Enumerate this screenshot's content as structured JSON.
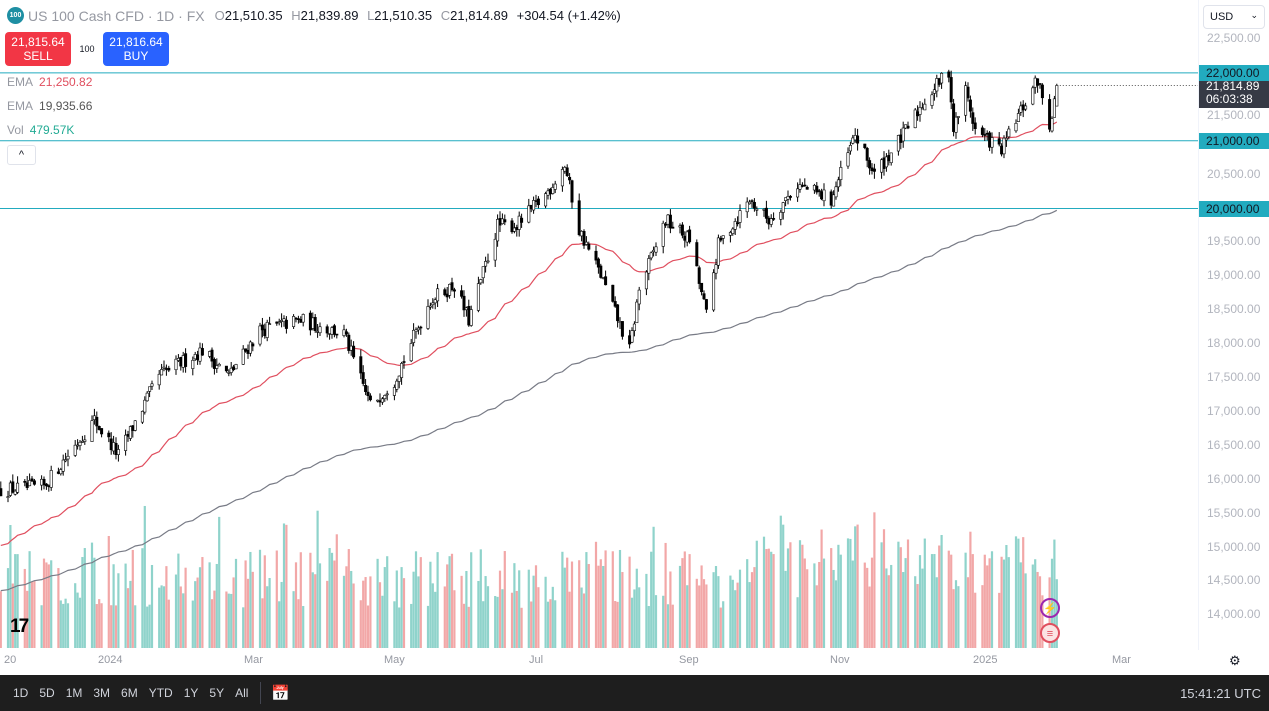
{
  "header": {
    "logo_text": "100",
    "symbol": "US 100 Cash CFD · 1D · FX",
    "open_label": "O",
    "open": "21,510.35",
    "high_label": "H",
    "high": "21,839.89",
    "low_label": "L",
    "low": "21,510.35",
    "close_label": "C",
    "close": "21,814.89",
    "change": "+304.54 (+1.42%)"
  },
  "trade": {
    "sell_price": "21,815.64",
    "sell_label": "SELL",
    "spread": "100",
    "buy_price": "21,816.64",
    "buy_label": "BUY"
  },
  "indicators": [
    {
      "label": "EMA",
      "value": "21,250.82",
      "color": "#e04f5f"
    },
    {
      "label": "EMA",
      "value": "19,935.66",
      "color": "#787b86"
    },
    {
      "label": "Vol",
      "value": "479.57K",
      "color": "#22ab94"
    }
  ],
  "collapse_icon": "^",
  "currency": "USD",
  "price_axis": {
    "ticks": [
      "22,500.00",
      "21,500.00",
      "20,500.00",
      "19,500.00",
      "19,000.00",
      "18,500.00",
      "18,000.00",
      "17,500.00",
      "17,000.00",
      "16,500.00",
      "16,000.00",
      "15,500.00",
      "15,000.00",
      "14,500.00",
      "14,000.00"
    ],
    "levels": [
      "22,000.00",
      "21,000.00",
      "20,000.00"
    ],
    "current_price": "21,814.89",
    "countdown": "06:03:38"
  },
  "time_axis": [
    "20",
    "2024",
    "Mar",
    "May",
    "Jul",
    "Sep",
    "Nov",
    "2025",
    "Mar"
  ],
  "watermark": "TV",
  "toolbar": {
    "ranges": [
      "1D",
      "5D",
      "1M",
      "3M",
      "6M",
      "YTD",
      "1Y",
      "5Y",
      "All"
    ],
    "clock": "15:41:21 UTC"
  },
  "colors": {
    "level_line": "#22abbf",
    "ema_fast": "#e04f5f",
    "ema_slow": "#787b86",
    "vol_up": "#8fd3cb",
    "vol_down": "#f2a7a7"
  },
  "chart_data": {
    "type": "candlestick",
    "ylim": [
      13800,
      22700
    ],
    "log": false,
    "horizontal_levels": [
      22000,
      21000,
      20000
    ],
    "ema_fast_last": 21250.82,
    "ema_slow_last": 19935.66,
    "closes_approx": [
      [
        "2023-11-17",
        15850
      ],
      [
        "2023-12-05",
        15900
      ],
      [
        "2023-12-26",
        16880
      ],
      [
        "2024-01-05",
        16360
      ],
      [
        "2024-01-22",
        17540
      ],
      [
        "2024-02-09",
        17910
      ],
      [
        "2024-02-20",
        17540
      ],
      [
        "2024-03-04",
        18210
      ],
      [
        "2024-03-21",
        18350
      ],
      [
        "2024-04-08",
        18150
      ],
      [
        "2024-04-19",
        17100
      ],
      [
        "2024-04-29",
        17470
      ],
      [
        "2024-05-14",
        18650
      ],
      [
        "2024-05-24",
        18870
      ],
      [
        "2024-05-30",
        18350
      ],
      [
        "2024-06-11",
        19750
      ],
      [
        "2024-06-19",
        19750
      ],
      [
        "2024-07-01",
        20200
      ],
      [
        "2024-07-09",
        20640
      ],
      [
        "2024-07-15",
        19680
      ],
      [
        "2024-07-24",
        19020
      ],
      [
        "2024-08-05",
        17910
      ],
      [
        "2024-08-09",
        18800
      ],
      [
        "2024-08-20",
        19830
      ],
      [
        "2024-08-30",
        19540
      ],
      [
        "2024-09-06",
        18430
      ],
      [
        "2024-09-11",
        19460
      ],
      [
        "2024-09-24",
        20130
      ],
      [
        "2024-10-02",
        19830
      ],
      [
        "2024-10-14",
        20350
      ],
      [
        "2024-10-28",
        20130
      ],
      [
        "2024-11-07",
        21080
      ],
      [
        "2024-11-15",
        20500
      ],
      [
        "2024-11-27",
        21080
      ],
      [
        "2024-12-06",
        21600
      ],
      [
        "2024-12-16",
        22040
      ],
      [
        "2024-12-18",
        21160
      ],
      [
        "2024-12-23",
        21750
      ],
      [
        "2024-12-27",
        21160
      ],
      [
        "2025-01-07",
        20860
      ],
      [
        "2025-01-13",
        21300
      ],
      [
        "2025-01-22",
        21900
      ],
      [
        "2025-01-27",
        21230
      ],
      [
        "2025-01-30",
        21815
      ]
    ]
  }
}
